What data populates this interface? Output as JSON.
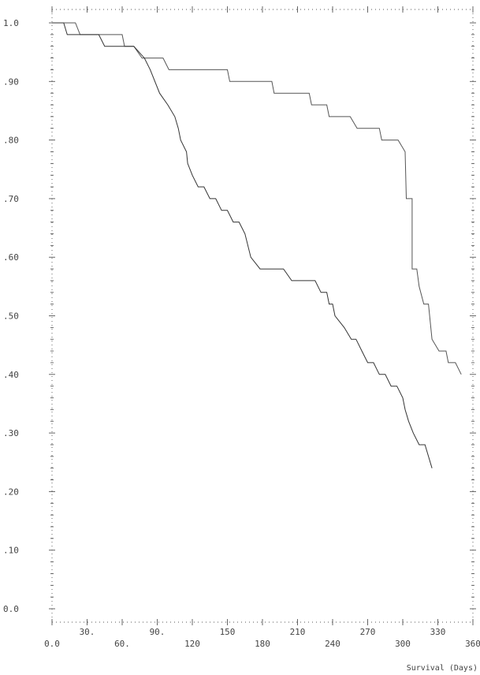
{
  "chart_data": {
    "type": "line",
    "title": "",
    "xlabel": "Survival (Days)",
    "ylabel": "",
    "xlim": [
      0,
      360
    ],
    "ylim": [
      0,
      1.0
    ],
    "grid": false,
    "x_ticks": [
      {
        "value": 0,
        "label": "0.0",
        "row": 2
      },
      {
        "value": 30,
        "label": "30.",
        "row": 1
      },
      {
        "value": 60,
        "label": "60.",
        "row": 2
      },
      {
        "value": 90,
        "label": "90.",
        "row": 1
      },
      {
        "value": 120,
        "label": "120",
        "row": 2
      },
      {
        "value": 150,
        "label": "150",
        "row": 1
      },
      {
        "value": 180,
        "label": "180",
        "row": 2
      },
      {
        "value": 210,
        "label": "210",
        "row": 1
      },
      {
        "value": 240,
        "label": "240",
        "row": 2
      },
      {
        "value": 270,
        "label": "270",
        "row": 1
      },
      {
        "value": 300,
        "label": "300",
        "row": 2
      },
      {
        "value": 330,
        "label": "330",
        "row": 1
      },
      {
        "value": 360,
        "label": "360",
        "row": 2
      }
    ],
    "y_ticks": [
      {
        "value": 0.0,
        "label": "0.0"
      },
      {
        "value": 0.1,
        "label": ".10"
      },
      {
        "value": 0.2,
        "label": ".20"
      },
      {
        "value": 0.3,
        "label": ".30"
      },
      {
        "value": 0.4,
        "label": ".40"
      },
      {
        "value": 0.5,
        "label": ".50"
      },
      {
        "value": 0.6,
        "label": ".60"
      },
      {
        "value": 0.7,
        "label": ".70"
      },
      {
        "value": 0.8,
        "label": ".80"
      },
      {
        "value": 0.9,
        "label": ".90"
      },
      {
        "value": 1.0,
        "label": "1.0"
      }
    ],
    "series": [
      {
        "color": "#555555",
        "dashed": false,
        "points": [
          [
            0,
            1.0
          ],
          [
            20,
            1.0
          ],
          [
            24,
            0.98
          ],
          [
            60,
            0.98
          ],
          [
            62,
            0.96
          ],
          [
            70,
            0.96
          ],
          [
            77,
            0.94
          ],
          [
            95,
            0.94
          ],
          [
            100,
            0.92
          ],
          [
            130,
            0.92
          ],
          [
            150,
            0.92
          ],
          [
            152,
            0.9
          ],
          [
            188,
            0.9
          ],
          [
            190,
            0.88
          ],
          [
            220,
            0.88
          ],
          [
            222,
            0.86
          ],
          [
            235,
            0.86
          ],
          [
            237,
            0.84
          ],
          [
            255,
            0.84
          ],
          [
            261,
            0.82
          ],
          [
            280,
            0.82
          ],
          [
            282,
            0.8
          ],
          [
            296,
            0.8
          ],
          [
            302,
            0.78
          ],
          [
            303,
            0.7
          ],
          [
            308,
            0.7
          ],
          [
            308,
            0.58
          ],
          [
            312,
            0.58
          ],
          [
            314,
            0.55
          ],
          [
            318,
            0.52
          ],
          [
            322,
            0.52
          ],
          [
            325,
            0.46
          ],
          [
            331,
            0.44
          ],
          [
            337,
            0.44
          ],
          [
            339,
            0.42
          ],
          [
            345,
            0.42
          ],
          [
            350,
            0.4
          ]
        ]
      },
      {
        "color": "#333333",
        "dashed": false,
        "points": [
          [
            0,
            1.0
          ],
          [
            10,
            1.0
          ],
          [
            13,
            0.98
          ],
          [
            30,
            0.98
          ],
          [
            40,
            0.98
          ],
          [
            45,
            0.96
          ],
          [
            60,
            0.96
          ],
          [
            70,
            0.96
          ],
          [
            79,
            0.94
          ],
          [
            84,
            0.92
          ],
          [
            92,
            0.88
          ],
          [
            99,
            0.86
          ],
          [
            105,
            0.84
          ],
          [
            108,
            0.82
          ],
          [
            110,
            0.8
          ],
          [
            115,
            0.78
          ],
          [
            116,
            0.76
          ],
          [
            120,
            0.74
          ],
          [
            125,
            0.72
          ],
          [
            130,
            0.72
          ],
          [
            135,
            0.7
          ],
          [
            140,
            0.7
          ],
          [
            145,
            0.68
          ],
          [
            150,
            0.68
          ],
          [
            155,
            0.66
          ],
          [
            160,
            0.66
          ],
          [
            165,
            0.64
          ],
          [
            170,
            0.6
          ],
          [
            178,
            0.58
          ],
          [
            198,
            0.58
          ],
          [
            205,
            0.56
          ],
          [
            225,
            0.56
          ],
          [
            230,
            0.54
          ],
          [
            235,
            0.54
          ],
          [
            237,
            0.52
          ],
          [
            240,
            0.52
          ],
          [
            242,
            0.5
          ],
          [
            250,
            0.48
          ],
          [
            256,
            0.46
          ],
          [
            260,
            0.46
          ],
          [
            265,
            0.44
          ],
          [
            270,
            0.42
          ],
          [
            275,
            0.42
          ],
          [
            280,
            0.4
          ],
          [
            285,
            0.4
          ],
          [
            290,
            0.38
          ],
          [
            295,
            0.38
          ],
          [
            300,
            0.36
          ],
          [
            302,
            0.34
          ],
          [
            305,
            0.32
          ],
          [
            309,
            0.3
          ],
          [
            314,
            0.28
          ],
          [
            319,
            0.28
          ],
          [
            325,
            0.24
          ]
        ]
      }
    ]
  }
}
